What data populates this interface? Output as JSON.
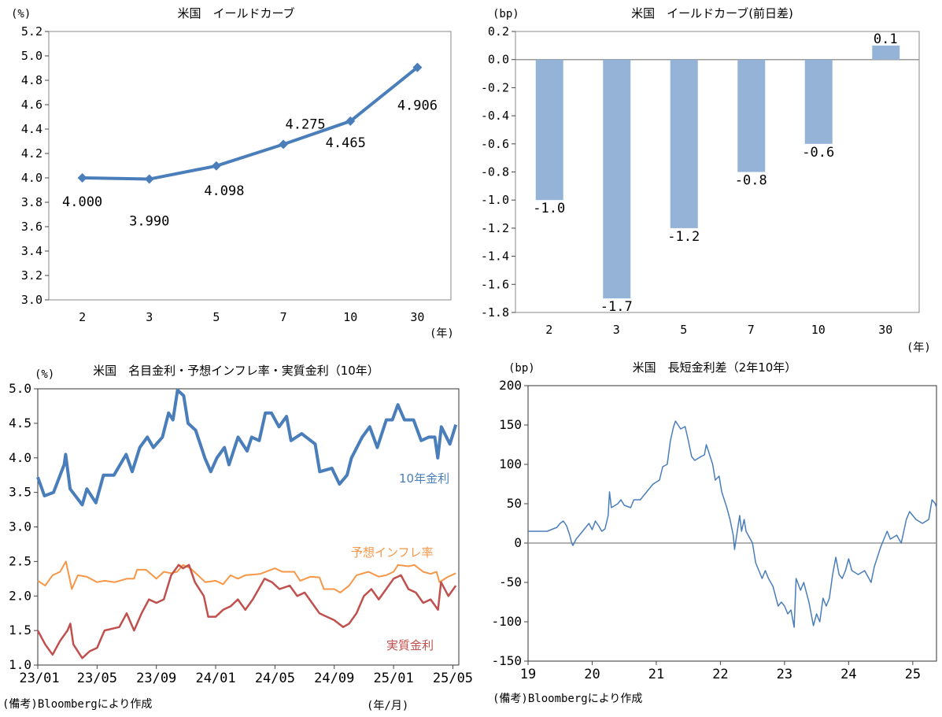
{
  "chart_data": [
    {
      "type": "line",
      "title": "米国　イールドカーブ",
      "ylabel": "(%)",
      "xlabel": "(年)",
      "categories": [
        "2",
        "3",
        "5",
        "7",
        "10",
        "30"
      ],
      "values": [
        4.0,
        3.99,
        4.098,
        4.275,
        4.465,
        4.906
      ],
      "data_labels": [
        "4.000",
        "3.990",
        "4.098",
        "4.275",
        "4.465",
        "4.906"
      ],
      "ylim": [
        3.0,
        5.2
      ],
      "yticks": [
        "3.0",
        "3.2",
        "3.4",
        "3.6",
        "3.8",
        "4.0",
        "4.2",
        "4.4",
        "4.6",
        "4.8",
        "5.0",
        "5.2"
      ],
      "color": "#4a7ebb",
      "grid": false
    },
    {
      "type": "bar",
      "title": "米国　イールドカーブ(前日差)",
      "ylabel": "(bp)",
      "xlabel": "(年)",
      "categories": [
        "2",
        "3",
        "5",
        "7",
        "10",
        "30"
      ],
      "values": [
        -1.0,
        -1.7,
        -1.2,
        -0.8,
        -0.6,
        0.1
      ],
      "data_labels": [
        "-1.0",
        "-1.7",
        "-1.2",
        "-0.8",
        "-0.6",
        "0.1"
      ],
      "ylim": [
        -1.8,
        0.2
      ],
      "yticks": [
        "-1.8",
        "-1.6",
        "-1.4",
        "-1.2",
        "-1.0",
        "-0.8",
        "-0.6",
        "-0.4",
        "-0.2",
        "0.0",
        "0.2"
      ],
      "color": "#95b3d7",
      "grid": false
    },
    {
      "type": "line",
      "title": "米国　名目金利・予想インフレ率・実質金利（10年）",
      "ylabel": "(%)",
      "xlabel": "(年/月)",
      "note": "(備考)Bloombergにより作成",
      "x_unit": "months since 2023/01",
      "xlim": [
        0,
        28.4
      ],
      "xticks": [
        {
          "x": 0,
          "label": "23/01"
        },
        {
          "x": 4,
          "label": "23/05"
        },
        {
          "x": 8,
          "label": "23/09"
        },
        {
          "x": 12,
          "label": "24/01"
        },
        {
          "x": 16,
          "label": "24/05"
        },
        {
          "x": 20,
          "label": "24/09"
        },
        {
          "x": 24,
          "label": "25/01"
        },
        {
          "x": 28,
          "label": "25/05"
        }
      ],
      "ylim": [
        1.0,
        5.0
      ],
      "yticks": [
        "1.0",
        "1.5",
        "2.0",
        "2.5",
        "3.0",
        "3.5",
        "4.0",
        "4.5",
        "5.0"
      ],
      "series": [
        {
          "name": "10年金利",
          "color": "#4a7ebb",
          "width": 4,
          "x": [
            0,
            0.45,
            1.06,
            1.78,
            1.88,
            2.18,
            3.0,
            3.31,
            3.92,
            4.43,
            5.14,
            5.96,
            6.37,
            6.88,
            7.39,
            7.8,
            8.41,
            8.82,
            9.12,
            9.43,
            9.84,
            10.14,
            10.65,
            11.27,
            11.67,
            12.08,
            12.59,
            12.9,
            13.51,
            14.12,
            14.43,
            14.94,
            15.35,
            15.76,
            16.27,
            16.78,
            17.08,
            17.8,
            18.41,
            18.71,
            19.02,
            19.84,
            20.35,
            20.86,
            21.16,
            21.88,
            22.39,
            22.9,
            23.51,
            23.92,
            24.29,
            24.73,
            25.35,
            25.86,
            26.37,
            26.78,
            26.98,
            27.22,
            27.8,
            28.2
          ],
          "y": [
            3.72,
            3.45,
            3.5,
            3.9,
            4.05,
            3.55,
            3.32,
            3.55,
            3.35,
            3.75,
            3.75,
            4.05,
            3.8,
            4.15,
            4.3,
            4.15,
            4.3,
            4.65,
            4.55,
            4.98,
            4.9,
            4.5,
            4.4,
            4.0,
            3.8,
            4.0,
            4.15,
            3.9,
            4.3,
            4.1,
            4.3,
            4.25,
            4.65,
            4.65,
            4.45,
            4.6,
            4.25,
            4.35,
            4.25,
            4.2,
            3.8,
            3.85,
            3.62,
            3.75,
            4.0,
            4.3,
            4.45,
            4.15,
            4.55,
            4.55,
            4.77,
            4.55,
            4.55,
            4.25,
            4.3,
            4.3,
            4.0,
            4.45,
            4.2,
            4.48
          ]
        },
        {
          "name": "予想インフレ率",
          "color": "#f79646",
          "width": 2,
          "x": [
            0,
            0.5,
            1,
            1.5,
            1.9,
            2.3,
            2.7,
            3.3,
            4,
            4.5,
            5.2,
            6,
            6.5,
            6.7,
            7.3,
            8,
            8.5,
            9,
            9.4,
            9.8,
            10.3,
            10.8,
            11.3,
            12,
            12.5,
            13,
            13.5,
            14,
            15,
            16,
            16.5,
            17.3,
            17.7,
            18.4,
            19,
            19.3,
            20,
            20.4,
            21,
            21.5,
            22.3,
            23,
            23.5,
            24,
            24.3,
            25,
            25.4,
            26,
            26.5,
            26.9,
            27.1,
            27.6,
            28.2
          ],
          "y": [
            2.22,
            2.15,
            2.3,
            2.35,
            2.5,
            2.1,
            2.3,
            2.28,
            2.2,
            2.22,
            2.2,
            2.25,
            2.25,
            2.38,
            2.38,
            2.25,
            2.35,
            2.33,
            2.35,
            2.45,
            2.4,
            2.3,
            2.2,
            2.22,
            2.17,
            2.3,
            2.25,
            2.3,
            2.32,
            2.4,
            2.35,
            2.35,
            2.22,
            2.28,
            2.27,
            2.1,
            2.1,
            2.05,
            2.15,
            2.3,
            2.35,
            2.28,
            2.3,
            2.35,
            2.45,
            2.43,
            2.45,
            2.35,
            2.32,
            2.35,
            2.2,
            2.27,
            2.33
          ]
        },
        {
          "name": "実質金利",
          "color": "#c0504d",
          "width": 2.5,
          "x": [
            0,
            0.5,
            1,
            1.5,
            2,
            2.2,
            2.4,
            3,
            3.5,
            4,
            4.5,
            5.5,
            6,
            6.5,
            7,
            7.5,
            8,
            8.5,
            9,
            9.5,
            9.8,
            10.2,
            10.6,
            11.2,
            11.5,
            12,
            12.5,
            13,
            13.5,
            14,
            14.5,
            15.3,
            15.8,
            16.3,
            17,
            17.5,
            18,
            18.5,
            19,
            19.5,
            20,
            20.6,
            21,
            21.5,
            22,
            22.5,
            23,
            23.5,
            24,
            24.5,
            25,
            25.5,
            26,
            26.5,
            27,
            27.2,
            27.7,
            28.2
          ],
          "y": [
            1.5,
            1.3,
            1.15,
            1.35,
            1.5,
            1.6,
            1.3,
            1.1,
            1.2,
            1.25,
            1.5,
            1.55,
            1.75,
            1.5,
            1.75,
            1.95,
            1.9,
            1.95,
            2.3,
            2.45,
            2.4,
            2.45,
            2.2,
            2.0,
            1.7,
            1.7,
            1.8,
            1.85,
            1.95,
            1.8,
            1.95,
            2.25,
            2.2,
            2.1,
            2.15,
            2.0,
            2.05,
            1.9,
            1.75,
            1.7,
            1.65,
            1.55,
            1.6,
            1.75,
            2.0,
            2.1,
            1.95,
            2.1,
            2.25,
            2.3,
            2.1,
            2.05,
            1.9,
            1.95,
            1.8,
            2.2,
            2.0,
            2.15
          ]
        }
      ]
    },
    {
      "type": "line",
      "title": "米国　長短金利差（2年10年）",
      "ylabel": "(bp)",
      "note": "(備考)Bloombergにより作成",
      "x_unit": "years since 2019",
      "xlim": [
        0,
        6.37
      ],
      "xticks": [
        {
          "x": 0,
          "label": "19"
        },
        {
          "x": 1,
          "label": "20"
        },
        {
          "x": 2,
          "label": "21"
        },
        {
          "x": 3,
          "label": "22"
        },
        {
          "x": 4,
          "label": "23"
        },
        {
          "x": 5,
          "label": "24"
        },
        {
          "x": 6,
          "label": "25"
        }
      ],
      "ylim": [
        -150,
        200
      ],
      "yticks": [
        "-150",
        "-100",
        "-50",
        "0",
        "50",
        "100",
        "150",
        "200"
      ],
      "series": [
        {
          "name": "2年10年",
          "color": "#4a7ebb",
          "width": 1.5,
          "x": [
            0,
            0.3,
            0.45,
            0.5,
            0.55,
            0.6,
            0.65,
            0.68,
            0.7,
            0.75,
            0.8,
            0.85,
            0.95,
            1.0,
            1.05,
            1.1,
            1.15,
            1.2,
            1.25,
            1.27,
            1.3,
            1.4,
            1.45,
            1.5,
            1.6,
            1.65,
            1.75,
            1.85,
            1.95,
            2.05,
            2.1,
            2.17,
            2.22,
            2.27,
            2.3,
            2.38,
            2.45,
            2.5,
            2.55,
            2.6,
            2.7,
            2.75,
            2.78,
            2.82,
            2.88,
            2.92,
            2.98,
            3.02,
            3.1,
            3.15,
            3.2,
            3.22,
            3.3,
            3.33,
            3.37,
            3.4,
            3.5,
            3.55,
            3.65,
            3.7,
            3.75,
            3.82,
            3.9,
            3.95,
            4.0,
            4.05,
            4.1,
            4.15,
            4.18,
            4.25,
            4.3,
            4.38,
            4.45,
            4.5,
            4.55,
            4.6,
            4.65,
            4.7,
            4.75,
            4.8,
            4.85,
            4.9,
            4.95,
            5.0,
            5.05,
            5.15,
            5.25,
            5.35,
            5.4,
            5.5,
            5.6,
            5.65,
            5.75,
            5.82,
            5.9,
            5.95,
            6.05,
            6.15,
            6.25,
            6.3,
            6.35,
            6.37
          ],
          "y": [
            15,
            15,
            20,
            25,
            28,
            22,
            10,
            0,
            -3,
            5,
            10,
            15,
            25,
            17,
            28,
            22,
            15,
            18,
            35,
            65,
            45,
            50,
            55,
            48,
            45,
            55,
            55,
            65,
            75,
            80,
            97,
            100,
            130,
            148,
            155,
            145,
            148,
            130,
            110,
            105,
            110,
            112,
            125,
            115,
            100,
            80,
            85,
            65,
            45,
            30,
            10,
            -8,
            35,
            15,
            30,
            15,
            0,
            -25,
            -45,
            -35,
            -45,
            -55,
            -80,
            -75,
            -80,
            -90,
            -85,
            -107,
            -45,
            -60,
            -50,
            -75,
            -105,
            -90,
            -100,
            -70,
            -80,
            -70,
            -40,
            -18,
            -40,
            -45,
            -35,
            -20,
            -35,
            -40,
            -35,
            -50,
            -30,
            -5,
            15,
            5,
            10,
            0,
            30,
            40,
            30,
            25,
            30,
            55,
            50,
            45
          ]
        }
      ]
    }
  ]
}
